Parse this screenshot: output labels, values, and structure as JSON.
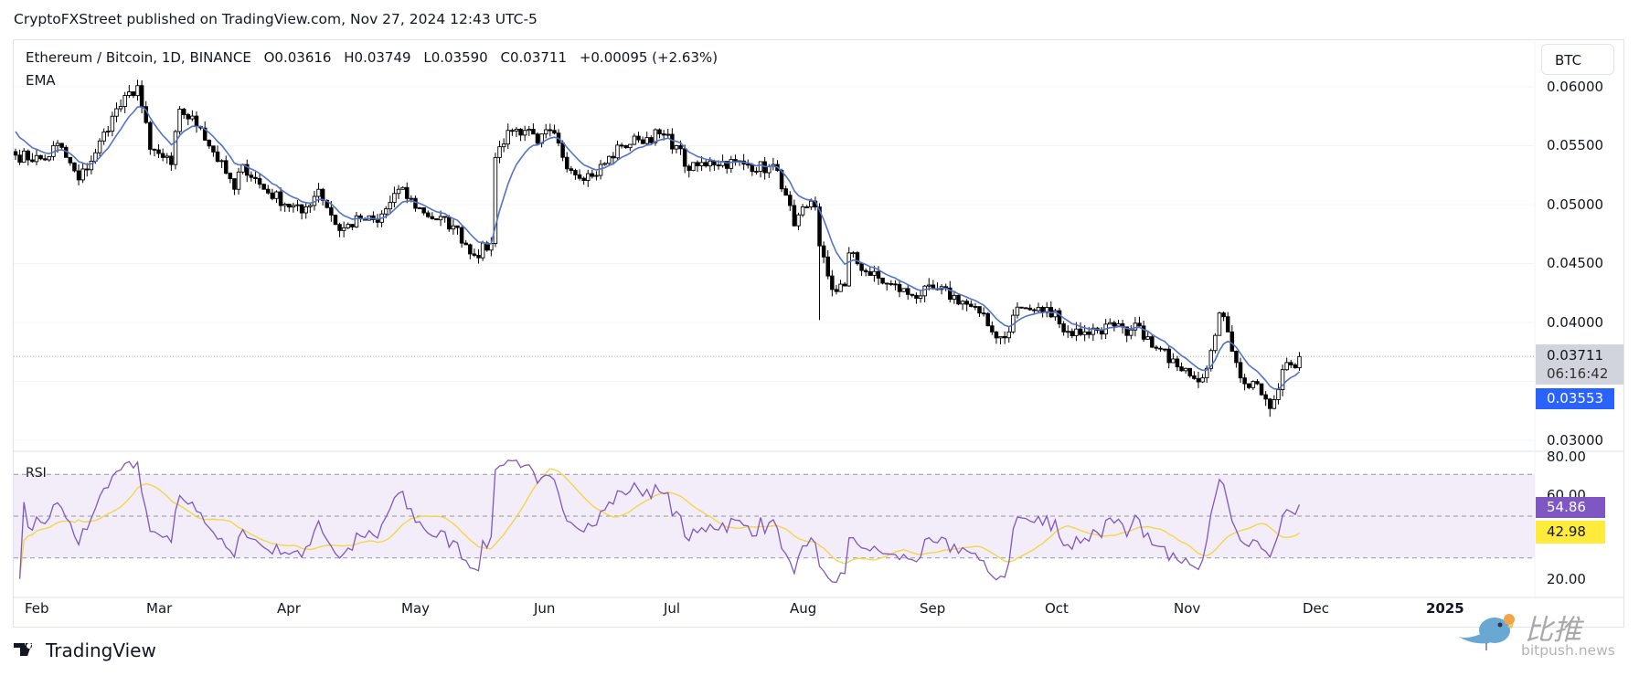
{
  "publish_line": "CryptoFXStreet published on TradingView.com, Nov 27, 2024 12:43 UTC-5",
  "legend": {
    "symbol": "Ethereum / Bitcoin, 1D, BINANCE",
    "open": "O0.03616",
    "high": "H0.03749",
    "low": "L0.03590",
    "close": "C0.03711",
    "change": "+0.00095 (+2.63%)",
    "ema_label": "EMA",
    "rsi_label": "RSI"
  },
  "currency_button": "BTC",
  "price_axis": [
    "0.06000",
    "0.05500",
    "0.05000",
    "0.04500",
    "0.04000",
    "0.03000"
  ],
  "rsi_axis": [
    "80.00",
    "60.00",
    "20.00"
  ],
  "badges": {
    "last_price": "0.03711",
    "countdown": "06:16:42",
    "ema_value": "0.03553",
    "rsi_value": "54.86",
    "rsi_ma_value": "42.98"
  },
  "time_axis": [
    "Feb",
    "Mar",
    "Apr",
    "May",
    "Jun",
    "Jul",
    "Aug",
    "Sep",
    "Oct",
    "Nov",
    "Dec",
    "2025"
  ],
  "footer": {
    "brand": "TradingView"
  },
  "watermark": {
    "cn": "比推",
    "en": "bitpush.news"
  },
  "colors": {
    "ema": "#5273c9",
    "rsi": "#7e57c2",
    "rsi_ma": "#f2d64b",
    "rsi_band": "#ede7f6",
    "ema_badge": "#2962ff"
  },
  "chart_data": {
    "type": "candlestick",
    "title": "Ethereum / Bitcoin, 1D, BINANCE",
    "ylim": [
      0.03,
      0.06
    ],
    "rsi_ylim": [
      20,
      80
    ],
    "rsi_levels": [
      70,
      50,
      30
    ],
    "last_candle": {
      "date": "2024-11-27",
      "open": 0.03616,
      "high": 0.03749,
      "low": 0.0359,
      "close": 0.03711
    },
    "ema_start": 0.0567,
    "extremes": [
      {
        "date": "2024-08-05",
        "low": 0.0402
      },
      {
        "date": "2024-02-25",
        "high": 0.0606
      },
      {
        "date": "2024-11-20",
        "low": 0.032
      }
    ],
    "close_waypoints": [
      [
        "2024-01-27",
        0.0542
      ],
      [
        "2024-02-03",
        0.0538
      ],
      [
        "2024-02-06",
        0.0552
      ],
      [
        "2024-02-11",
        0.0521
      ],
      [
        "2024-02-15",
        0.0544
      ],
      [
        "2024-02-19",
        0.0575
      ],
      [
        "2024-02-25",
        0.0601
      ],
      [
        "2024-02-28",
        0.0547
      ],
      [
        "2024-03-04",
        0.0534
      ],
      [
        "2024-03-06",
        0.0581
      ],
      [
        "2024-03-11",
        0.0565
      ],
      [
        "2024-03-19",
        0.0513
      ],
      [
        "2024-03-21",
        0.0534
      ],
      [
        "2024-03-26",
        0.0513
      ],
      [
        "2024-04-04",
        0.0493
      ],
      [
        "2024-04-08",
        0.0513
      ],
      [
        "2024-04-13",
        0.0478
      ],
      [
        "2024-04-18",
        0.0488
      ],
      [
        "2024-04-22",
        0.0485
      ],
      [
        "2024-04-27",
        0.0513
      ],
      [
        "2024-05-03",
        0.0493
      ],
      [
        "2024-05-10",
        0.0482
      ],
      [
        "2024-05-15",
        0.0457
      ],
      [
        "2024-05-19",
        0.0467
      ],
      [
        "2024-05-20",
        0.054
      ],
      [
        "2024-05-23",
        0.0563
      ],
      [
        "2024-05-27",
        0.0563
      ],
      [
        "2024-05-30",
        0.0552
      ],
      [
        "2024-06-02",
        0.0563
      ],
      [
        "2024-06-07",
        0.0529
      ],
      [
        "2024-06-12",
        0.0524
      ],
      [
        "2024-06-19",
        0.055
      ],
      [
        "2024-06-23",
        0.0555
      ],
      [
        "2024-06-28",
        0.056
      ],
      [
        "2024-07-02",
        0.055
      ],
      [
        "2024-07-05",
        0.0529
      ],
      [
        "2024-07-10",
        0.0537
      ],
      [
        "2024-07-19",
        0.0534
      ],
      [
        "2024-07-26",
        0.0529
      ],
      [
        "2024-07-28",
        0.0508
      ],
      [
        "2024-07-30",
        0.0482
      ],
      [
        "2024-08-02",
        0.0498
      ],
      [
        "2024-08-04",
        0.0498
      ],
      [
        "2024-08-05",
        0.0465
      ],
      [
        "2024-08-08",
        0.0428
      ],
      [
        "2024-08-11",
        0.0431
      ],
      [
        "2024-08-12",
        0.0459
      ],
      [
        "2024-08-16",
        0.0443
      ],
      [
        "2024-08-21",
        0.0433
      ],
      [
        "2024-08-27",
        0.0423
      ],
      [
        "2024-09-02",
        0.0428
      ],
      [
        "2024-09-08",
        0.0418
      ],
      [
        "2024-09-12",
        0.0408
      ],
      [
        "2024-09-15",
        0.0392
      ],
      [
        "2024-09-18",
        0.0387
      ],
      [
        "2024-09-21",
        0.0413
      ],
      [
        "2024-09-25",
        0.041
      ],
      [
        "2024-09-30",
        0.041
      ],
      [
        "2024-10-02",
        0.0392
      ],
      [
        "2024-10-07",
        0.0392
      ],
      [
        "2024-10-14",
        0.0397
      ],
      [
        "2024-10-17",
        0.0389
      ],
      [
        "2024-10-20",
        0.0397
      ],
      [
        "2024-10-23",
        0.0379
      ],
      [
        "2024-10-28",
        0.0369
      ],
      [
        "2024-10-31",
        0.0361
      ],
      [
        "2024-11-04",
        0.0353
      ],
      [
        "2024-11-05",
        0.0361
      ],
      [
        "2024-11-07",
        0.0389
      ],
      [
        "2024-11-08",
        0.0408
      ],
      [
        "2024-11-10",
        0.0392
      ],
      [
        "2024-11-12",
        0.0366
      ],
      [
        "2024-11-14",
        0.0348
      ],
      [
        "2024-11-17",
        0.0348
      ],
      [
        "2024-11-19",
        0.0335
      ],
      [
        "2024-11-20",
        0.0327
      ],
      [
        "2024-11-22",
        0.0343
      ],
      [
        "2024-11-24",
        0.0366
      ],
      [
        "2024-11-25",
        0.0364
      ],
      [
        "2024-11-26",
        0.03616
      ],
      [
        "2024-11-27",
        0.03711
      ]
    ]
  }
}
